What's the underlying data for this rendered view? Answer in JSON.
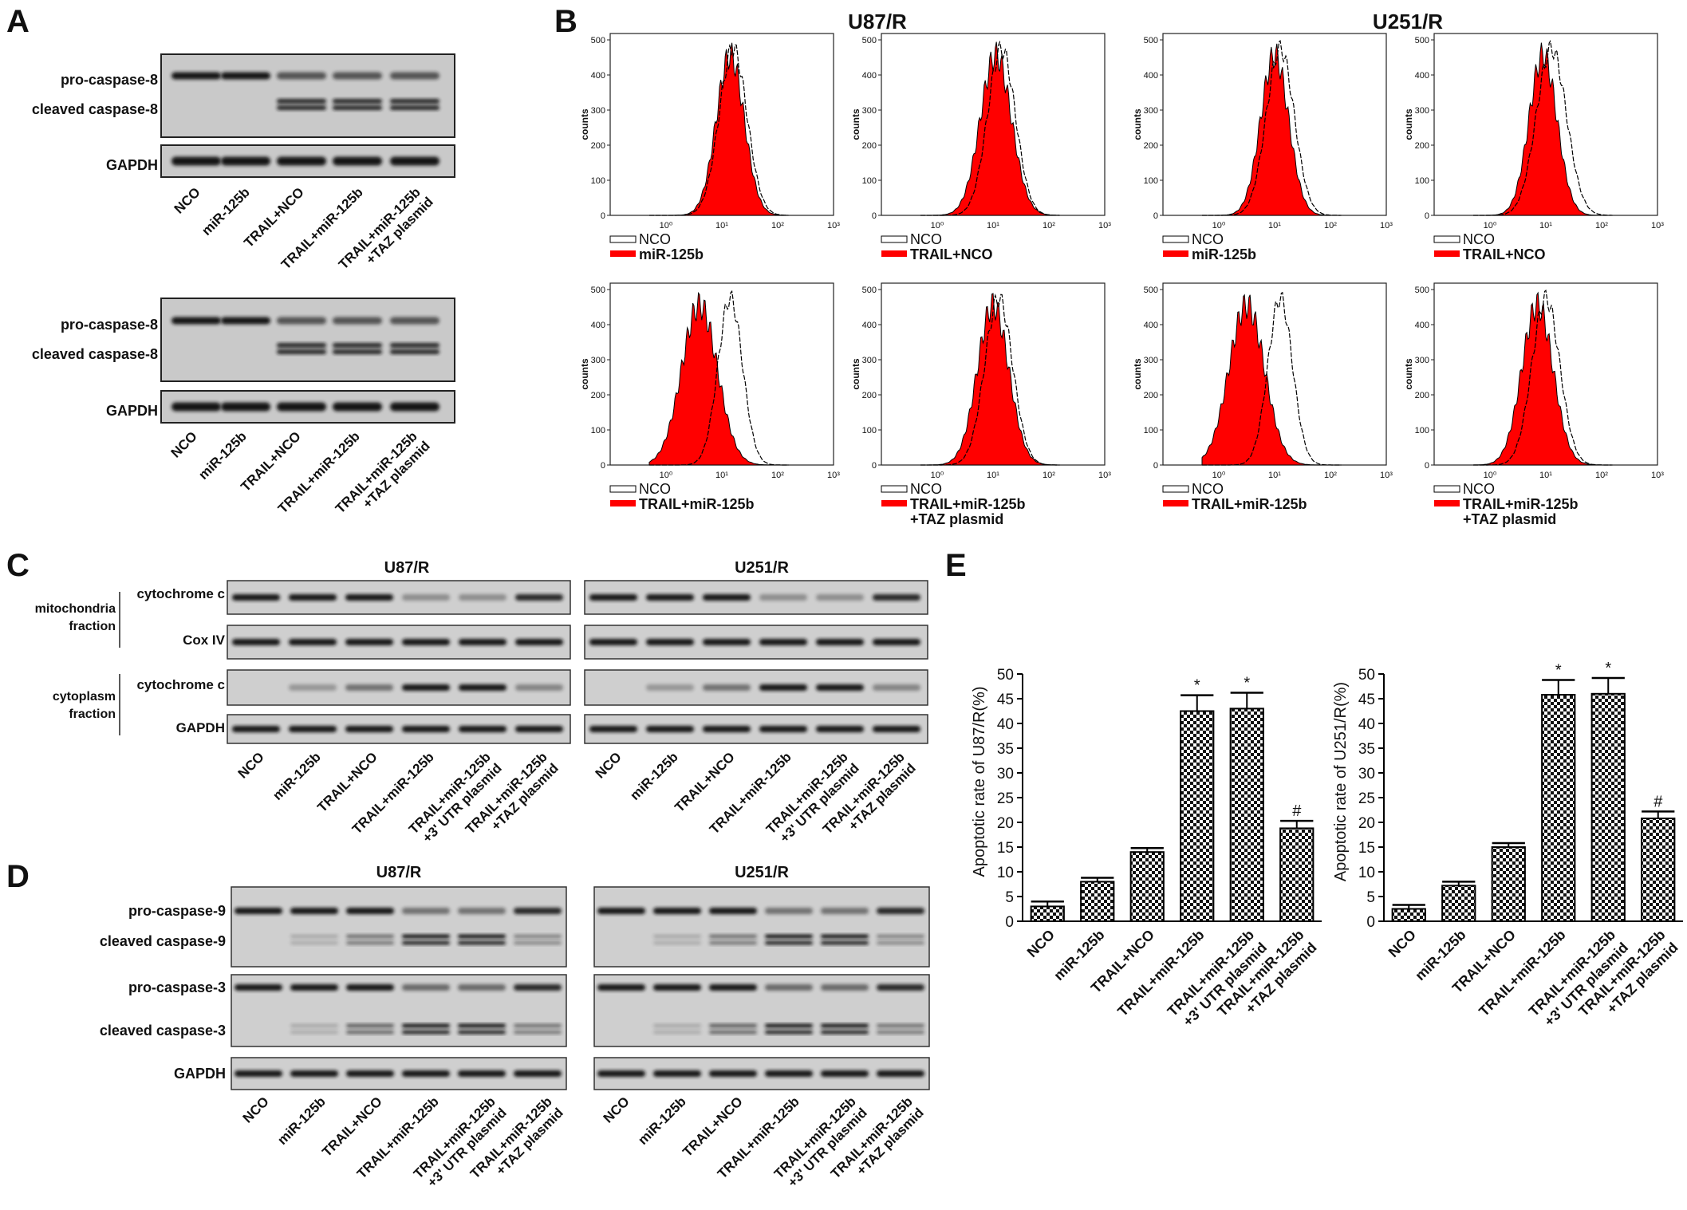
{
  "panels": {
    "A": "A",
    "B": "B",
    "C": "C",
    "D": "D",
    "E": "E"
  },
  "cell_lines": {
    "u87": "U87/R",
    "u251": "U251/R"
  },
  "panel_a": {
    "labels": [
      "pro-caspase-8",
      "cleaved caspase-8",
      "GAPDH"
    ],
    "lanes": [
      "NCO",
      "miR-125b",
      "TRAIL+NCO",
      "TRAIL+miR-125b",
      "TRAIL+miR-125b",
      "+TAZ plasmid"
    ]
  },
  "panel_b": {
    "y_label": "counts",
    "y_ticks": [
      "0",
      "100",
      "200",
      "300",
      "400",
      "500"
    ],
    "x_ticks": [
      "10⁰",
      "10¹",
      "10²",
      "10³"
    ],
    "legends": [
      [
        "NCO",
        "miR-125b"
      ],
      [
        "NCO",
        "TRAIL+NCO"
      ],
      [
        "NCO",
        "miR-125b"
      ],
      [
        "NCO",
        "TRAIL+NCO"
      ],
      [
        "NCO",
        "TRAIL+miR-125b"
      ],
      [
        "NCO",
        "TRAIL+miR-125b",
        "+TAZ plasmid"
      ],
      [
        "NCO",
        "TRAIL+miR-125b"
      ],
      [
        "NCO",
        "TRAIL+miR-125b",
        "+TAZ plasmid"
      ]
    ]
  },
  "panel_c": {
    "fraction_mito": [
      "mitochondria",
      "fraction"
    ],
    "fraction_cyto": [
      "cytoplasm",
      "fraction"
    ],
    "labels": [
      "cytochrome c",
      "Cox IV",
      "cytochrome c",
      "GAPDH"
    ]
  },
  "panel_d": {
    "labels": [
      "pro-caspase-9",
      "cleaved caspase-9",
      "pro-caspase-3",
      "cleaved caspase-3",
      "GAPDH"
    ]
  },
  "lanes6": [
    "NCO",
    "miR-125b",
    "TRAIL+NCO",
    "TRAIL+miR-125b",
    "TRAIL+miR-125b",
    "+3' UTR plasmid",
    "TRAIL+miR-125b",
    "+TAZ plasmid"
  ],
  "chart_data": [
    {
      "type": "bar",
      "ylabel": "Apoptotic rate of U87/R(%)",
      "ylim": [
        0,
        50
      ],
      "yticks": [
        0,
        5,
        10,
        15,
        20,
        25,
        30,
        35,
        40,
        45,
        50
      ],
      "categories": [
        "NCO",
        "miR-125b",
        "TRAIL+NCO",
        "TRAIL+miR-125b",
        "TRAIL+miR-125b +3' UTR plasmid",
        "TRAIL+miR-125b +TAZ plasmid"
      ],
      "values": [
        3,
        8,
        14,
        42.5,
        43,
        18.8
      ],
      "errors": [
        1,
        0.8,
        0.8,
        3.2,
        3.2,
        1.5
      ],
      "annotations": [
        "",
        "",
        "",
        "*",
        "*",
        "#"
      ]
    },
    {
      "type": "bar",
      "ylabel": "Apoptotic rate of U251/R(%)",
      "ylim": [
        0,
        50
      ],
      "yticks": [
        0,
        5,
        10,
        15,
        20,
        25,
        30,
        35,
        40,
        45,
        50
      ],
      "categories": [
        "NCO",
        "miR-125b",
        "TRAIL+NCO",
        "TRAIL+miR-125b",
        "TRAIL+miR-125b +3' UTR plasmid",
        "TRAIL+miR-125b +TAZ plasmid"
      ],
      "values": [
        2.5,
        7.2,
        15,
        45.8,
        46,
        20.8
      ],
      "errors": [
        0.8,
        0.8,
        0.8,
        3,
        3.2,
        1.4
      ],
      "annotations": [
        "",
        "",
        "",
        "*",
        "*",
        "#"
      ]
    }
  ]
}
